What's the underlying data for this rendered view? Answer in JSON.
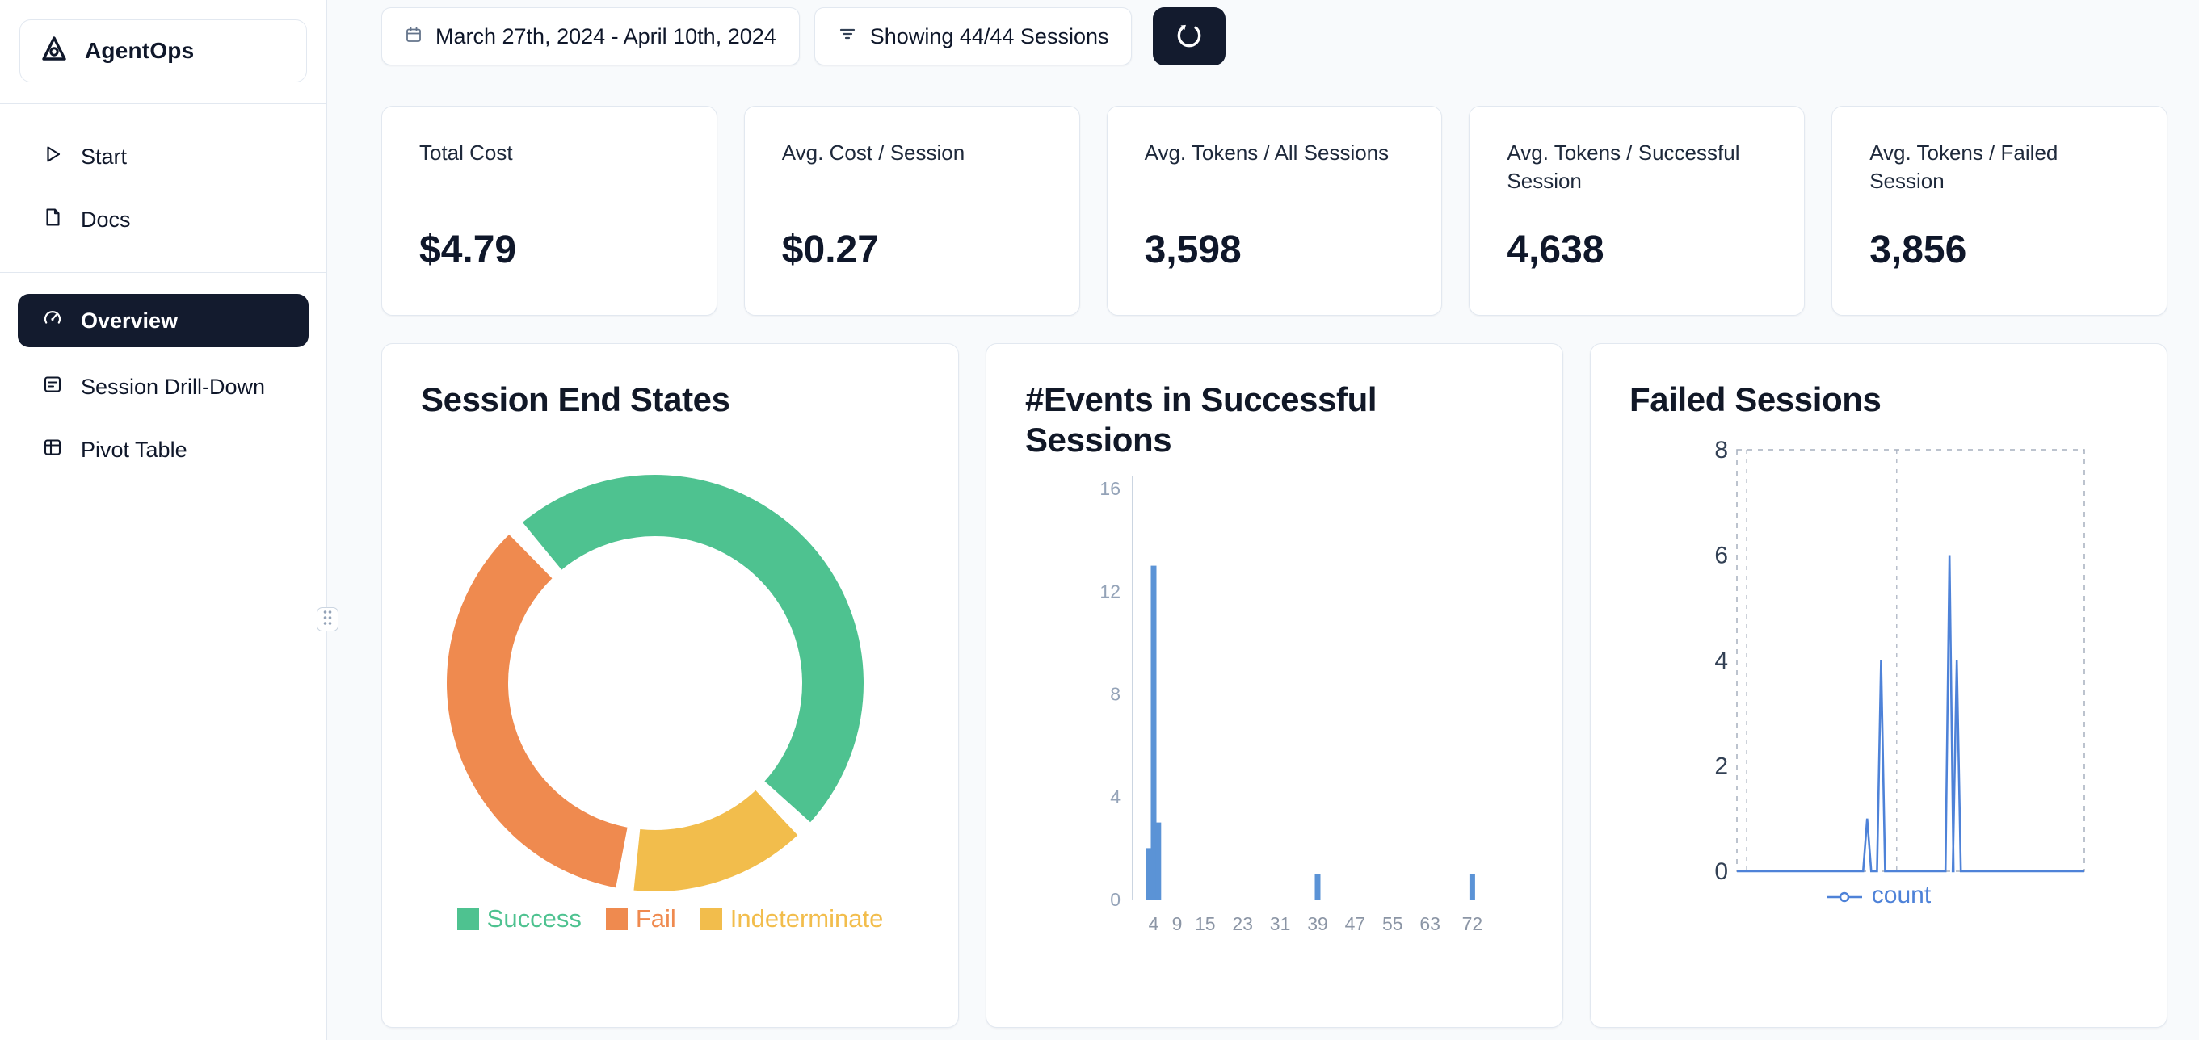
{
  "sidebar": {
    "logo_text": "AgentOps",
    "primary_items": [
      {
        "label": "Start"
      },
      {
        "label": "Docs"
      }
    ],
    "secondary_items": [
      {
        "label": "Overview",
        "active": true
      },
      {
        "label": "Session Drill-Down"
      },
      {
        "label": "Pivot Table"
      }
    ]
  },
  "topbar": {
    "date_range": "March 27th, 2024 - April 10th, 2024",
    "sessions_filter": "Showing 44/44 Sessions"
  },
  "stats": [
    {
      "label": "Total Cost",
      "value": "$4.79"
    },
    {
      "label": "Avg. Cost / Session",
      "value": "$0.27"
    },
    {
      "label": "Avg. Tokens / All Sessions",
      "value": "3,598"
    },
    {
      "label": "Avg. Tokens / Successful Session",
      "value": "4,638"
    },
    {
      "label": "Avg. Tokens / Failed Session",
      "value": "3,856"
    }
  ],
  "colors": {
    "navy": "#131B2E",
    "card_border": "#E2E8F0",
    "success": "#4EC290",
    "fail": "#EF8A4F",
    "indeterminate": "#F2BD4C",
    "bar_blue": "#5B93D6",
    "line_blue": "#4E82D8"
  },
  "icons": {
    "agentops-logo-icon": "triangle-A mark",
    "play-icon": "outlined play triangle",
    "docs-icon": "document outline",
    "gauge-icon": "speedometer",
    "drilldown-icon": "card with lines",
    "pivot-icon": "grid columns",
    "calendar-icon": "calendar outline",
    "filter-icon": "funnel lines",
    "refresh-icon": "circular arrow",
    "drag-handle-icon": "six dots grid",
    "legend-line-marker-icon": "line with circle"
  },
  "chart_data": [
    {
      "type": "pie",
      "donut": true,
      "title": "Session End States",
      "labels": [
        "Success",
        "Fail",
        "Indeterminate"
      ],
      "values_pct": [
        49,
        36,
        15
      ],
      "colors": [
        "#4EC290",
        "#EF8A4F",
        "#F2BD4C"
      ],
      "start_angle_deg": 318,
      "pad_angle_deg": 5,
      "draw_order": [
        0,
        2,
        1
      ],
      "legend_position": "bottom"
    },
    {
      "type": "bar",
      "title": "#Events in Successful Sessions",
      "color": "#5B93D6",
      "x_ticks": [
        4,
        9,
        15,
        23,
        31,
        39,
        47,
        55,
        63,
        72
      ],
      "y_ticks": [
        0,
        4,
        8,
        12,
        16
      ],
      "xlim": [
        0,
        76
      ],
      "ylim": [
        0,
        16
      ],
      "grid": false,
      "bars": [
        {
          "x": 3,
          "count": 2
        },
        {
          "x": 4,
          "count": 13
        },
        {
          "x": 5,
          "count": 3
        },
        {
          "x": 39,
          "count": 1
        },
        {
          "x": 72,
          "count": 1
        }
      ]
    },
    {
      "type": "line",
      "title": "Failed Sessions",
      "color": "#4E82D8",
      "legend": "count",
      "legend_position": "bottom",
      "y_ticks": [
        0,
        2,
        4,
        6,
        8
      ],
      "ylim": [
        0,
        8
      ],
      "grid": "dashed",
      "points": [
        {
          "x": 0.375,
          "count": 1
        },
        {
          "x": 0.415,
          "count": 4
        },
        {
          "x": 0.612,
          "count": 6
        },
        {
          "x": 0.633,
          "count": 4
        }
      ]
    }
  ]
}
